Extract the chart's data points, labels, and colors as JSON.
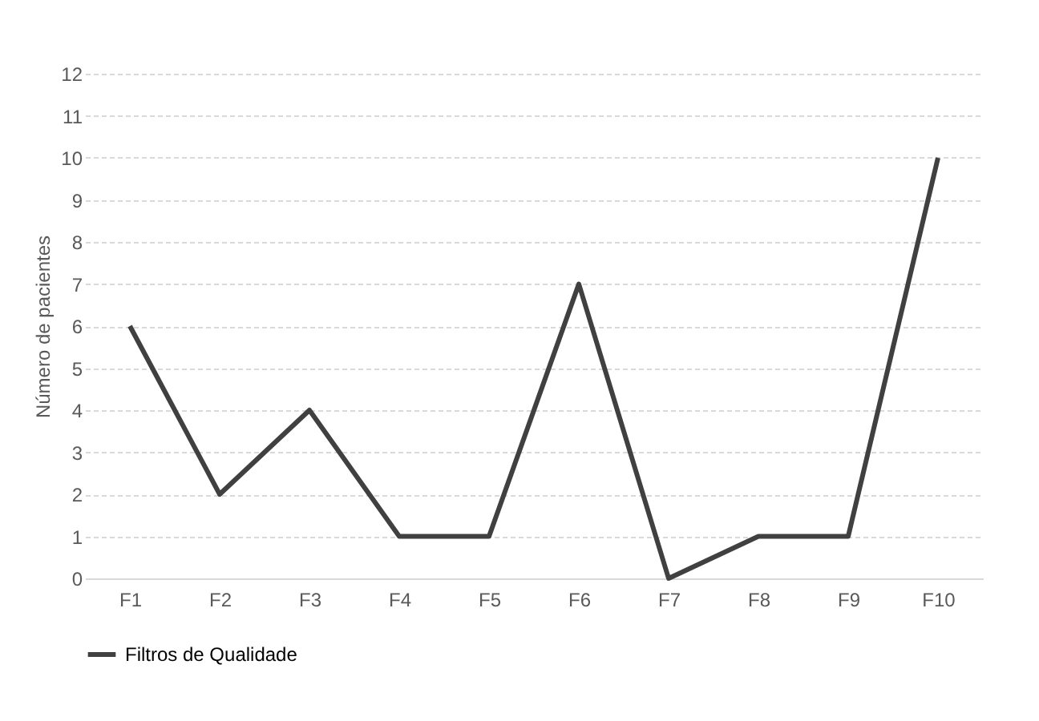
{
  "chart_data": {
    "type": "line",
    "ylabel": "Número de pacientes",
    "categories": [
      "F1",
      "F2",
      "F3",
      "F4",
      "F5",
      "F6",
      "F7",
      "F8",
      "F9",
      "F10"
    ],
    "series": [
      {
        "name": "Filtros de Qualidade",
        "color": "#404040",
        "values": [
          6,
          2,
          4,
          1,
          1,
          7,
          0,
          1,
          1,
          10
        ]
      }
    ],
    "ylim": [
      0,
      12
    ],
    "yticks": [
      0,
      1,
      2,
      3,
      4,
      5,
      6,
      7,
      8,
      9,
      10,
      11,
      12
    ],
    "grid": "y",
    "legend": "bottom",
    "marker": "none",
    "line_style": "solid"
  }
}
